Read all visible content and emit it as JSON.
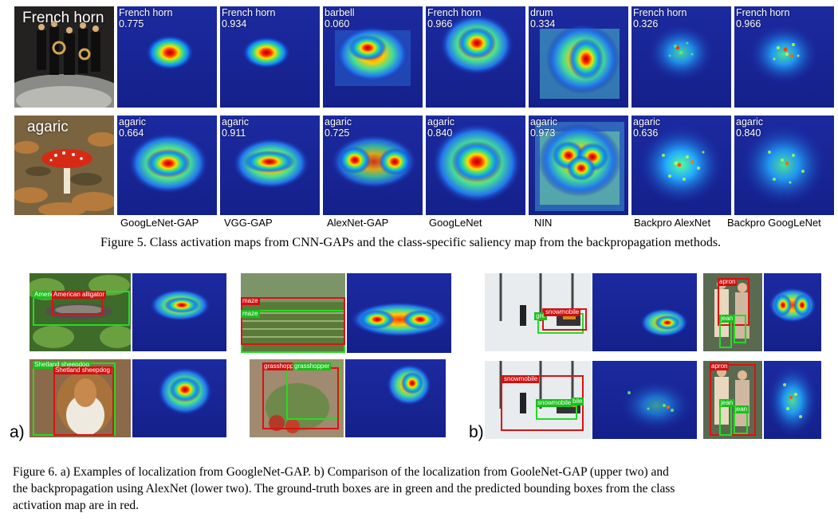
{
  "figure5": {
    "row1": {
      "photo_label": "French horn",
      "tiles": [
        {
          "class": "French horn",
          "score": "0.775",
          "col": "GoogLeNet-GAP"
        },
        {
          "class": "French horn",
          "score": "0.934",
          "col": "VGG-GAP"
        },
        {
          "class": "barbell",
          "score": "0.060",
          "col": "AlexNet-GAP"
        },
        {
          "class": "French horn",
          "score": "0.966",
          "col": "GoogLeNet"
        },
        {
          "class": "drum",
          "score": "0.334",
          "col": "NIN"
        },
        {
          "class": "French horn",
          "score": "0.326",
          "col": "Backpro AlexNet"
        },
        {
          "class": "French horn",
          "score": "0.966",
          "col": "Backpro GoogLeNet"
        }
      ]
    },
    "row2": {
      "photo_label": "agaric",
      "tiles": [
        {
          "class": "agaric",
          "score": "0.664"
        },
        {
          "class": "agaric",
          "score": "0.911"
        },
        {
          "class": "agaric",
          "score": "0.725"
        },
        {
          "class": "agaric",
          "score": "0.840"
        },
        {
          "class": "agaric",
          "score": "0.973"
        },
        {
          "class": "agaric",
          "score": "0.636"
        },
        {
          "class": "agaric",
          "score": "0.840"
        }
      ]
    },
    "columns": [
      "GoogLeNet-GAP",
      "VGG-GAP",
      "AlexNet-GAP",
      "GoogLeNet",
      "NIN",
      "Backpro AlexNet",
      "Backpro GoogLeNet"
    ],
    "caption": "Figure 5. Class activation maps from CNN-GAPs and the class-specific saliency map from the backpropagation methods."
  },
  "figure6": {
    "panel_a_letter": "a)",
    "panel_b_letter": "b)",
    "a_examples": {
      "alligator": {
        "gt": "American",
        "pred": "American alligator"
      },
      "maze": {
        "gt": "maze",
        "pred": "maze"
      },
      "sheepdog": {
        "gt": "Shetland sheepdog",
        "pred": "Shetland sheepdog"
      },
      "grasshopper": {
        "gt": "grasshopper",
        "pred": "grasshopper"
      }
    },
    "b_examples": {
      "snowmobile_gap": {
        "gt": "gre",
        "pred": "snowmobile"
      },
      "apron_gap": {
        "pred": "apron",
        "gt": "jean"
      },
      "snowmobile_bp": {
        "pred": "snowmobile",
        "gt": "snowmobile",
        "gt2": "bile"
      },
      "apron_bp": {
        "pred": "apron",
        "gt": "jean",
        "gt2": "jean"
      }
    },
    "caption_line1": "Figure 6. a) Examples of localization from GoogleNet-GAP. b) Comparison of the localization from GooleNet-GAP (upper two) and",
    "caption_line2": "the backpropagation using AlexNet (lower two).  The ground-truth boxes are in green and the predicted bounding boxes from the class",
    "caption_line3": "activation map are in red."
  }
}
